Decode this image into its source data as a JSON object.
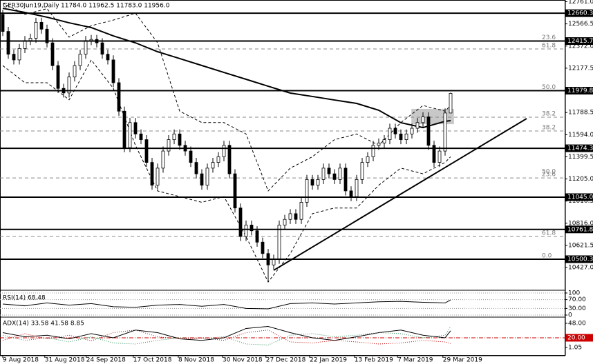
{
  "chart_data": [
    {
      "type": "candlestick",
      "title": "GER30Jun19,Daily",
      "subtitle": "11784.0 11962.5 11783.0 11956.0",
      "xlim": [
        -0.5,
        101.75
      ],
      "ylim": [
        10240,
        12770
      ],
      "xticks": [
        {
          "value": 0,
          "label": "9 Aug 2018"
        },
        {
          "value": 7.6,
          "label": "31 Aug 2018"
        },
        {
          "value": 15.1,
          "label": "24 Sep 2018"
        },
        {
          "value": 23.6,
          "label": "17 Oct 2018"
        },
        {
          "value": 31.75,
          "label": "8 Nov 2018"
        },
        {
          "value": 39.75,
          "label": "30 Nov 2018"
        },
        {
          "value": 47.6,
          "label": "27 Dec 2018"
        },
        {
          "value": 55.5,
          "label": "22 Jan 2019"
        },
        {
          "value": 63.6,
          "label": "13 Feb 2019"
        },
        {
          "value": 71.4,
          "label": "7 Mar 2019"
        },
        {
          "value": 79.6,
          "label": "29 Mar 2019"
        }
      ],
      "yticks": [
        {
          "value": 12761,
          "label": "12761.0"
        },
        12566.5,
        {
          "value": 12372,
          "label": "12372.0"
        },
        12177.5,
        11788.5,
        {
          "value": 11594,
          "label": "11594.0"
        },
        11399.5,
        {
          "value": 11205,
          "label": "11205.0"
        },
        11010.5,
        {
          "value": 10816,
          "label": "10816.0"
        },
        10621.5,
        {
          "value": 10427,
          "label": "10427.0"
        }
      ],
      "candles": {
        "open": [
          12650,
          12500,
          12300,
          12250,
          12350,
          12420,
          12440,
          12580,
          12520,
          12400,
          12200,
          12000,
          11960,
          12100,
          12200,
          12300,
          12420,
          12430,
          12400,
          12300,
          12250,
          12050,
          11800,
          11480,
          11700,
          11600,
          11550,
          11350,
          11150,
          11300,
          11450,
          11550,
          11600,
          11500,
          11450,
          11350,
          11250,
          11150,
          11300,
          11350,
          11400,
          11500,
          11250,
          10950,
          10700,
          10800,
          10750,
          10650,
          10550,
          10450,
          10500,
          10800,
          10850,
          10900,
          10850,
          11000,
          11200,
          11150,
          11200,
          11300,
          11250,
          11200,
          11300,
          11100,
          11050,
          11200,
          11350,
          11400,
          11500,
          11520,
          11550,
          11650,
          11600,
          11550,
          11600,
          11650,
          11700,
          11750,
          11500,
          11350,
          11450,
          11784
        ],
        "high": [
          12690,
          12540,
          12340,
          12390,
          12460,
          12480,
          12620,
          12620,
          12560,
          12440,
          12240,
          12040,
          12140,
          12240,
          12340,
          12460,
          12470,
          12470,
          12440,
          12340,
          12290,
          12090,
          11840,
          11740,
          11740,
          11640,
          11590,
          11390,
          11340,
          11490,
          11590,
          11640,
          11640,
          11540,
          11490,
          11390,
          11290,
          11340,
          11390,
          11440,
          11540,
          11540,
          11290,
          10990,
          10840,
          10840,
          10790,
          10690,
          10590,
          10540,
          10840,
          10890,
          10940,
          10940,
          11040,
          11240,
          11240,
          11240,
          11340,
          11340,
          11290,
          11340,
          11340,
          11140,
          11240,
          11390,
          11440,
          11540,
          11560,
          11590,
          11690,
          11690,
          11640,
          11640,
          11690,
          11740,
          11790,
          11790,
          11540,
          11490,
          11824,
          11962.5
        ],
        "low": [
          12460,
          12260,
          12210,
          12210,
          12310,
          12380,
          12400,
          12480,
          12360,
          12160,
          11960,
          11920,
          11920,
          12060,
          12160,
          12260,
          12380,
          12360,
          12260,
          12210,
          12010,
          11760,
          11440,
          11440,
          11560,
          11510,
          11310,
          11110,
          11110,
          11260,
          11410,
          11510,
          11460,
          11410,
          11310,
          11210,
          11110,
          11110,
          11260,
          11310,
          11360,
          11210,
          10910,
          10660,
          10660,
          10710,
          10610,
          10510,
          10300,
          10410,
          10460,
          10760,
          10810,
          10810,
          10810,
          10960,
          11110,
          11110,
          11160,
          11210,
          11160,
          11160,
          11060,
          11010,
          11010,
          11160,
          11310,
          11360,
          11460,
          11480,
          11510,
          11560,
          11510,
          11510,
          11560,
          11610,
          11660,
          11460,
          11310,
          11310,
          11410,
          11783
        ],
        "close": [
          12500,
          12300,
          12250,
          12350,
          12420,
          12440,
          12580,
          12520,
          12400,
          12200,
          12000,
          11960,
          12100,
          12200,
          12300,
          12420,
          12430,
          12400,
          12300,
          12250,
          12050,
          11800,
          11480,
          11700,
          11600,
          11550,
          11350,
          11150,
          11300,
          11450,
          11550,
          11600,
          11500,
          11450,
          11350,
          11250,
          11150,
          11300,
          11350,
          11400,
          11500,
          11250,
          10950,
          10700,
          10800,
          10750,
          10650,
          10550,
          10450,
          10500,
          10800,
          10850,
          10900,
          10850,
          11000,
          11200,
          11150,
          11200,
          11300,
          11250,
          11200,
          11300,
          11100,
          11050,
          11200,
          11350,
          11400,
          11500,
          11520,
          11550,
          11650,
          11600,
          11550,
          11600,
          11650,
          11700,
          11750,
          11500,
          11350,
          11450,
          11784,
          11956
        ]
      },
      "lines": [
        {
          "style": "thick",
          "color": "#000000",
          "x": [
            0,
            4,
            8,
            12,
            16,
            20,
            24,
            28,
            32,
            36,
            40,
            44,
            48,
            52,
            56,
            60,
            64,
            68,
            72,
            76,
            80,
            81
          ],
          "values": [
            12703,
            12667,
            12625,
            12576,
            12534,
            12461,
            12400,
            12322,
            12262,
            12201,
            12140,
            12080,
            12019,
            11959,
            11929,
            11898,
            11868,
            11808,
            11699,
            11656,
            11711,
            11717
          ]
        },
        {
          "style": "dashed",
          "color": "#000000",
          "x": [
            0,
            4,
            8,
            12,
            16,
            20,
            24,
            28,
            32,
            36,
            40,
            44,
            48,
            52,
            56,
            60,
            64,
            68,
            72,
            76,
            80,
            81
          ],
          "values": [
            12750,
            12650,
            12700,
            12450,
            12550,
            12600,
            12660,
            12400,
            11800,
            11700,
            11700,
            11600,
            11100,
            11300,
            11400,
            11550,
            11600,
            11500,
            11700,
            11850,
            11800,
            11850
          ]
        },
        {
          "style": "dashed",
          "color": "#000000",
          "x": [
            0,
            4,
            8,
            12,
            16,
            20,
            24,
            28,
            32,
            36,
            40,
            44,
            48,
            52,
            56,
            60,
            64,
            68,
            72,
            76,
            80,
            81
          ],
          "values": [
            12200,
            12050,
            12050,
            11900,
            12250,
            12000,
            11500,
            11100,
            11050,
            11000,
            11050,
            10700,
            10300,
            10550,
            10900,
            10950,
            10950,
            11150,
            11300,
            11250,
            11350,
            11400
          ]
        }
      ],
      "levels": [
        12660.3,
        12415.7,
        11979.8,
        11474.3,
        {
          "value": 11045,
          "label": "11045.0"
        },
        10761.8,
        10500.3
      ],
      "level_color": "#000000",
      "fib_lines": [
        12346,
        11747,
        11626,
        11214,
        10700
      ],
      "fib_labels": [
        {
          "label": "23.6",
          "value": 12415.7
        },
        {
          "label": "61.8",
          "value": 12346
        },
        {
          "label": "50.0",
          "value": 11979.8
        },
        {
          "label": "38.2",
          "value": 11747
        },
        {
          "label": "38.2",
          "value": 11626
        },
        {
          "label": "50.0",
          "value": 11240
        },
        {
          "label": "23.6",
          "value": 11214
        },
        {
          "label": "61.8",
          "value": 10700
        },
        {
          "label": "0.0",
          "value": 10500.3
        }
      ],
      "highlight": {
        "xlim": [
          73.9,
          81.6
        ],
        "ylim": [
          11686,
          11820
        ],
        "color": "#c8c8c8"
      },
      "trendline": {
        "x": [
          49,
          94.75
        ],
        "y": [
          10403,
          11735
        ]
      }
    },
    {
      "type": "line",
      "title": "RSI(14) 68.48",
      "xlim": [
        -0.5,
        101.75
      ],
      "ylim": [
        0,
        100
      ],
      "grid": true,
      "yticks": [
        100,
        {
          "value": 70,
          "label": "70.00"
        },
        {
          "value": 30,
          "label": "30.00"
        },
        0
      ],
      "lines": [
        {
          "style": "solid",
          "color": "#000000",
          "x": [
            0,
            4,
            8,
            12,
            16,
            20,
            24,
            28,
            32,
            36,
            40,
            44,
            48,
            52,
            56,
            60,
            64,
            68,
            72,
            76,
            80,
            81
          ],
          "values": [
            50,
            42,
            55,
            45,
            52,
            38,
            35,
            45,
            48,
            40,
            48,
            30,
            28,
            52,
            55,
            50,
            55,
            60,
            62,
            58,
            55,
            68.48
          ]
        }
      ]
    },
    {
      "type": "line",
      "title": "ADX(14) 33.58 41.58 8.85",
      "xlim": [
        -0.5,
        101.75
      ],
      "ylim": [
        -14.7,
        57.3
      ],
      "grid": false,
      "yticks": [
        {
          "value": 48,
          "label": "48.00"
        },
        1.05
      ],
      "levels": [
        {
          "value": 20,
          "label": "20.00"
        }
      ],
      "level_color": "#cc0000",
      "lines": [
        {
          "style": "solid",
          "color": "#000000",
          "x": [
            0,
            4,
            8,
            12,
            16,
            20,
            24,
            28,
            32,
            36,
            40,
            44,
            48,
            52,
            56,
            60,
            64,
            68,
            72,
            76,
            80,
            81
          ],
          "values": [
            30,
            22,
            25,
            18,
            28,
            20,
            35,
            30,
            18,
            15,
            20,
            38,
            42,
            30,
            20,
            15,
            22,
            30,
            35,
            25,
            20,
            33.58
          ]
        },
        {
          "style": "dotted",
          "color": "#2e8b57",
          "x": [
            0,
            4,
            8,
            12,
            16,
            20,
            24,
            28,
            32,
            36,
            40,
            44,
            48,
            52,
            56,
            60,
            64,
            68,
            72,
            76,
            80,
            81
          ],
          "values": [
            25,
            15,
            20,
            12,
            22,
            10,
            8,
            15,
            20,
            18,
            22,
            8,
            6,
            25,
            28,
            22,
            25,
            30,
            28,
            20,
            25,
            41.58
          ]
        },
        {
          "style": "dotted",
          "color": "#cc0000",
          "x": [
            0,
            4,
            8,
            12,
            16,
            20,
            24,
            28,
            32,
            36,
            40,
            44,
            48,
            52,
            56,
            60,
            64,
            68,
            72,
            76,
            80,
            81
          ],
          "values": [
            15,
            28,
            18,
            25,
            14,
            30,
            35,
            22,
            18,
            20,
            15,
            30,
            35,
            12,
            10,
            15,
            12,
            8,
            10,
            15,
            12,
            8.85
          ]
        }
      ]
    }
  ]
}
